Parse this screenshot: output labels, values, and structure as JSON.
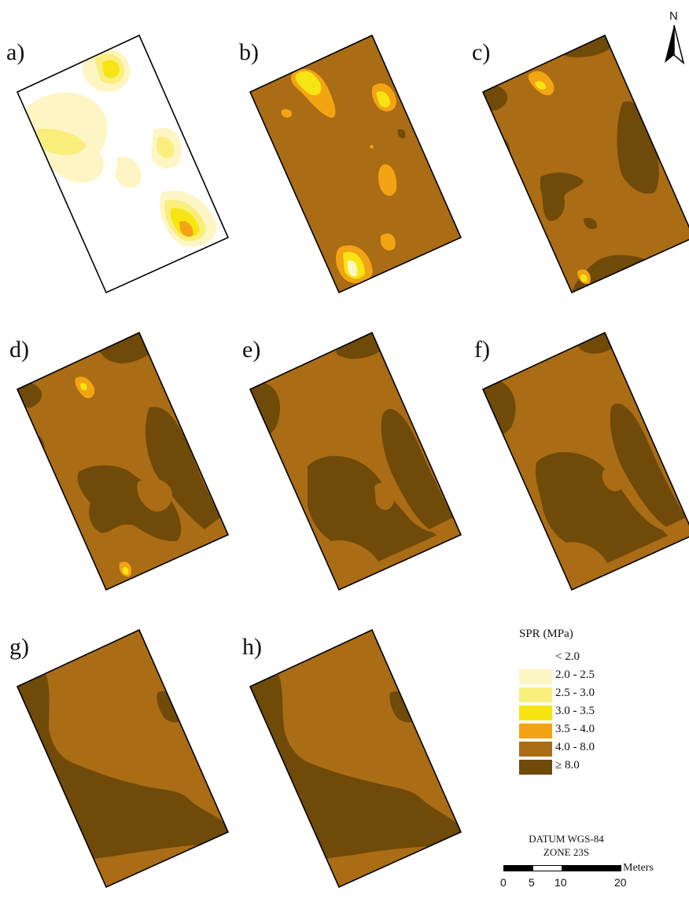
{
  "panels": [
    {
      "label": "a)",
      "base": "lt2"
    },
    {
      "label": "b)",
      "base": "c40_80"
    },
    {
      "label": "c)",
      "base": "c40_80"
    },
    {
      "label": "d)",
      "base": "c40_80"
    },
    {
      "label": "e)",
      "base": "c40_80"
    },
    {
      "label": "f)",
      "base": "c40_80"
    },
    {
      "label": "g)",
      "base": "c40_80"
    },
    {
      "label": "h)",
      "base": "c40_80"
    }
  ],
  "legend": {
    "title": "SPR (MPa)",
    "classes": [
      {
        "key": "lt2",
        "label": "< 2.0",
        "color": "#ffffff"
      },
      {
        "key": "c20_25",
        "label": "2.0 - 2.5",
        "color": "#fdf6c4"
      },
      {
        "key": "c25_30",
        "label": "2.5 - 3.0",
        "color": "#f9ee7c"
      },
      {
        "key": "c30_35",
        "label": "3.0 - 3.5",
        "color": "#f6e512"
      },
      {
        "key": "c35_40",
        "label": "3.5 - 4.0",
        "color": "#f2a413"
      },
      {
        "key": "c40_80",
        "label": "4.0 - 8.0",
        "color": "#aa6c14"
      },
      {
        "key": "ge8",
        "label": "≥ 8.0",
        "color": "#6f4a09"
      }
    ]
  },
  "datum": {
    "line1": "DATUM WGS-84",
    "line2": "ZONE 23S"
  },
  "scale_bar": {
    "unit": "Meters",
    "ticks": [
      "0",
      "5",
      "10",
      "20"
    ]
  },
  "north_arrow": {
    "letter": "N"
  }
}
